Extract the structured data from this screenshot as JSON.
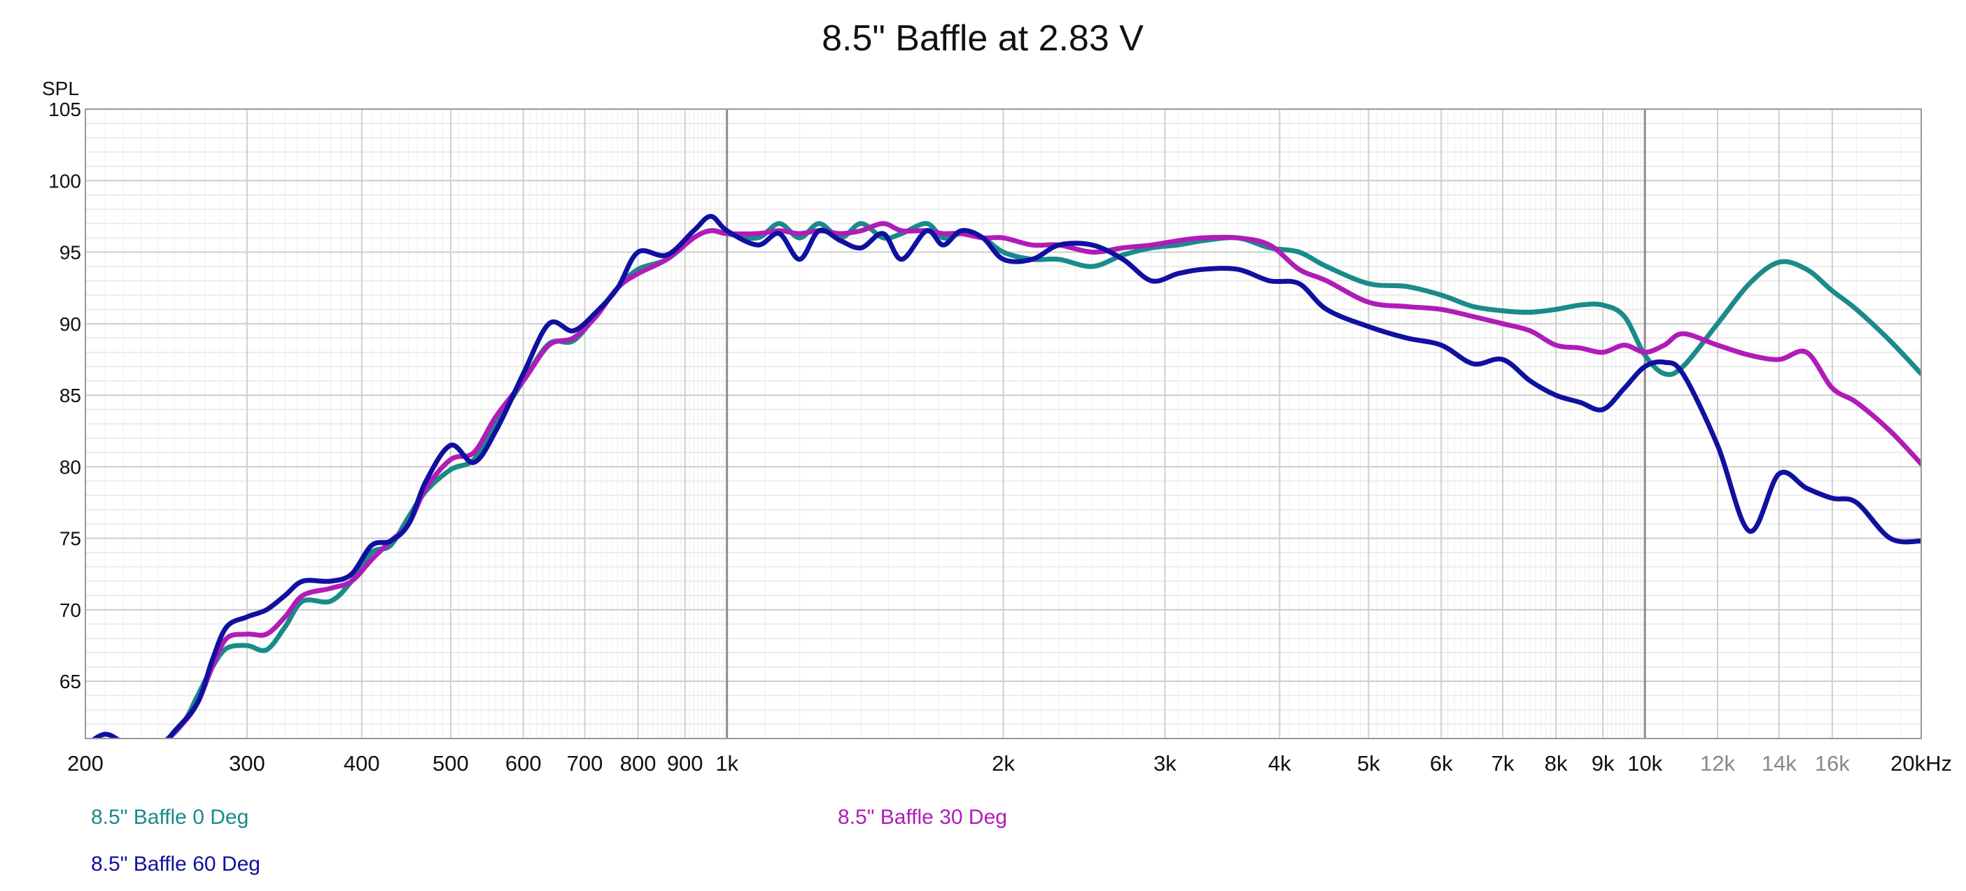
{
  "chart_data": {
    "type": "line",
    "title": "8.5\" Baffle at 2.83 V",
    "xlabel": "",
    "ylabel": "SPL",
    "x_scale": "log",
    "xlim": [
      200,
      20000
    ],
    "ylim": [
      61,
      105
    ],
    "grid": true,
    "legend_position": "bottom-left",
    "y_ticks": [
      65,
      70,
      75,
      80,
      85,
      90,
      95,
      100,
      105
    ],
    "x_ticks": [
      {
        "value": 200,
        "label": "200",
        "muted": false
      },
      {
        "value": 300,
        "label": "300",
        "muted": false
      },
      {
        "value": 400,
        "label": "400",
        "muted": false
      },
      {
        "value": 500,
        "label": "500",
        "muted": false
      },
      {
        "value": 600,
        "label": "600",
        "muted": false
      },
      {
        "value": 700,
        "label": "700",
        "muted": false
      },
      {
        "value": 800,
        "label": "800",
        "muted": false
      },
      {
        "value": 900,
        "label": "900",
        "muted": false
      },
      {
        "value": 1000,
        "label": "1k",
        "muted": false
      },
      {
        "value": 2000,
        "label": "2k",
        "muted": false
      },
      {
        "value": 3000,
        "label": "3k",
        "muted": false
      },
      {
        "value": 4000,
        "label": "4k",
        "muted": false
      },
      {
        "value": 5000,
        "label": "5k",
        "muted": false
      },
      {
        "value": 6000,
        "label": "6k",
        "muted": false
      },
      {
        "value": 7000,
        "label": "7k",
        "muted": false
      },
      {
        "value": 8000,
        "label": "8k",
        "muted": false
      },
      {
        "value": 9000,
        "label": "9k",
        "muted": false
      },
      {
        "value": 10000,
        "label": "10k",
        "muted": false
      },
      {
        "value": 12000,
        "label": "12k",
        "muted": true
      },
      {
        "value": 14000,
        "label": "14k",
        "muted": true
      },
      {
        "value": 16000,
        "label": "16k",
        "muted": true
      },
      {
        "value": 20000,
        "label": "20kHz",
        "muted": false
      }
    ],
    "series": [
      {
        "name": "8.5\" Baffle 0 Deg",
        "color": "#1a8a8a",
        "points": [
          [
            200,
            60
          ],
          [
            220,
            59.5
          ],
          [
            240,
            60.5
          ],
          [
            255,
            62
          ],
          [
            265,
            64
          ],
          [
            275,
            66
          ],
          [
            285,
            67.3
          ],
          [
            300,
            67.5
          ],
          [
            315,
            67.2
          ],
          [
            330,
            68.8
          ],
          [
            345,
            70.6
          ],
          [
            370,
            70.6
          ],
          [
            390,
            72
          ],
          [
            410,
            74
          ],
          [
            430,
            74.5
          ],
          [
            450,
            76.5
          ],
          [
            470,
            78.3
          ],
          [
            500,
            79.8
          ],
          [
            530,
            80.5
          ],
          [
            560,
            83
          ],
          [
            600,
            86
          ],
          [
            640,
            88.6
          ],
          [
            680,
            88.8
          ],
          [
            720,
            90.6
          ],
          [
            760,
            92.5
          ],
          [
            800,
            93.8
          ],
          [
            860,
            94.5
          ],
          [
            920,
            96
          ],
          [
            960,
            96.5
          ],
          [
            1000,
            96.3
          ],
          [
            1080,
            96
          ],
          [
            1140,
            97
          ],
          [
            1200,
            96
          ],
          [
            1260,
            97
          ],
          [
            1330,
            96
          ],
          [
            1400,
            97
          ],
          [
            1480,
            96
          ],
          [
            1550,
            96.3
          ],
          [
            1650,
            97
          ],
          [
            1720,
            96
          ],
          [
            1800,
            96.3
          ],
          [
            1900,
            96
          ],
          [
            2000,
            95
          ],
          [
            2150,
            94.5
          ],
          [
            2300,
            94.5
          ],
          [
            2500,
            94
          ],
          [
            2700,
            94.8
          ],
          [
            2900,
            95.3
          ],
          [
            3100,
            95.5
          ],
          [
            3300,
            95.8
          ],
          [
            3600,
            96
          ],
          [
            3900,
            95.3
          ],
          [
            4200,
            95
          ],
          [
            4500,
            94
          ],
          [
            5000,
            92.8
          ],
          [
            5500,
            92.6
          ],
          [
            6000,
            92
          ],
          [
            6500,
            91.2
          ],
          [
            7000,
            90.9
          ],
          [
            7500,
            90.8
          ],
          [
            8000,
            91
          ],
          [
            8500,
            91.3
          ],
          [
            9000,
            91.3
          ],
          [
            9500,
            90.5
          ],
          [
            10000,
            87.8
          ],
          [
            10500,
            86.5
          ],
          [
            11000,
            87
          ],
          [
            12000,
            90
          ],
          [
            13000,
            92.8
          ],
          [
            14000,
            94.3
          ],
          [
            15000,
            93.8
          ],
          [
            16000,
            92.3
          ],
          [
            17000,
            91
          ],
          [
            18500,
            88.8
          ],
          [
            20000,
            86.5
          ]
        ]
      },
      {
        "name": "8.5\" Baffle 30 Deg",
        "color": "#b01cb8",
        "points": [
          [
            200,
            60
          ],
          [
            220,
            59.5
          ],
          [
            240,
            60.5
          ],
          [
            255,
            62
          ],
          [
            265,
            63.5
          ],
          [
            275,
            66
          ],
          [
            285,
            68
          ],
          [
            300,
            68.3
          ],
          [
            315,
            68.3
          ],
          [
            330,
            69.5
          ],
          [
            345,
            71
          ],
          [
            370,
            71.5
          ],
          [
            390,
            72
          ],
          [
            410,
            73.5
          ],
          [
            430,
            74.8
          ],
          [
            450,
            76
          ],
          [
            470,
            78.5
          ],
          [
            500,
            80.5
          ],
          [
            530,
            81
          ],
          [
            560,
            83.5
          ],
          [
            600,
            86
          ],
          [
            640,
            88.5
          ],
          [
            680,
            89
          ],
          [
            720,
            90.5
          ],
          [
            760,
            92.5
          ],
          [
            800,
            93.5
          ],
          [
            860,
            94.5
          ],
          [
            920,
            96
          ],
          [
            960,
            96.5
          ],
          [
            1000,
            96.3
          ],
          [
            1080,
            96.3
          ],
          [
            1140,
            96.5
          ],
          [
            1200,
            96.3
          ],
          [
            1260,
            96.5
          ],
          [
            1330,
            96.3
          ],
          [
            1400,
            96.5
          ],
          [
            1480,
            97
          ],
          [
            1550,
            96.5
          ],
          [
            1650,
            96.5
          ],
          [
            1720,
            96.3
          ],
          [
            1800,
            96.3
          ],
          [
            1900,
            96
          ],
          [
            2000,
            96
          ],
          [
            2150,
            95.5
          ],
          [
            2300,
            95.5
          ],
          [
            2500,
            95
          ],
          [
            2700,
            95.3
          ],
          [
            2900,
            95.5
          ],
          [
            3100,
            95.8
          ],
          [
            3300,
            96
          ],
          [
            3600,
            96
          ],
          [
            3900,
            95.5
          ],
          [
            4200,
            93.8
          ],
          [
            4500,
            93
          ],
          [
            5000,
            91.5
          ],
          [
            5500,
            91.2
          ],
          [
            6000,
            91
          ],
          [
            6500,
            90.5
          ],
          [
            7000,
            90
          ],
          [
            7500,
            89.5
          ],
          [
            8000,
            88.5
          ],
          [
            8500,
            88.3
          ],
          [
            9000,
            88
          ],
          [
            9500,
            88.5
          ],
          [
            10000,
            88
          ],
          [
            10500,
            88.5
          ],
          [
            11000,
            89.3
          ],
          [
            12000,
            88.5
          ],
          [
            13000,
            87.8
          ],
          [
            14000,
            87.5
          ],
          [
            15000,
            88
          ],
          [
            16000,
            85.5
          ],
          [
            17000,
            84.5
          ],
          [
            18500,
            82.5
          ],
          [
            20000,
            80.2
          ]
        ]
      },
      {
        "name": "8.5\" Baffle 60 Deg",
        "color": "#1010a0",
        "points": [
          [
            200,
            60.5
          ],
          [
            210,
            61.3
          ],
          [
            220,
            60.7
          ],
          [
            235,
            59.7
          ],
          [
            250,
            61.5
          ],
          [
            265,
            63.5
          ],
          [
            275,
            66.5
          ],
          [
            285,
            68.8
          ],
          [
            300,
            69.5
          ],
          [
            315,
            70
          ],
          [
            330,
            71
          ],
          [
            345,
            72
          ],
          [
            370,
            72
          ],
          [
            390,
            72.5
          ],
          [
            410,
            74.5
          ],
          [
            430,
            74.8
          ],
          [
            450,
            76
          ],
          [
            470,
            79
          ],
          [
            500,
            81.5
          ],
          [
            530,
            80.3
          ],
          [
            560,
            82.5
          ],
          [
            600,
            86.5
          ],
          [
            640,
            90
          ],
          [
            680,
            89.5
          ],
          [
            720,
            90.8
          ],
          [
            760,
            92.5
          ],
          [
            800,
            95
          ],
          [
            860,
            94.8
          ],
          [
            920,
            96.5
          ],
          [
            960,
            97.5
          ],
          [
            1000,
            96.5
          ],
          [
            1080,
            95.5
          ],
          [
            1140,
            96.3
          ],
          [
            1200,
            94.5
          ],
          [
            1260,
            96.5
          ],
          [
            1330,
            95.8
          ],
          [
            1400,
            95.3
          ],
          [
            1480,
            96.3
          ],
          [
            1550,
            94.5
          ],
          [
            1650,
            96.5
          ],
          [
            1720,
            95.5
          ],
          [
            1800,
            96.5
          ],
          [
            1900,
            96
          ],
          [
            2000,
            94.5
          ],
          [
            2150,
            94.5
          ],
          [
            2300,
            95.5
          ],
          [
            2500,
            95.5
          ],
          [
            2700,
            94.5
          ],
          [
            2900,
            93
          ],
          [
            3100,
            93.5
          ],
          [
            3300,
            93.8
          ],
          [
            3600,
            93.8
          ],
          [
            3900,
            93
          ],
          [
            4200,
            92.8
          ],
          [
            4500,
            91
          ],
          [
            5000,
            89.8
          ],
          [
            5500,
            89
          ],
          [
            6000,
            88.5
          ],
          [
            6500,
            87.2
          ],
          [
            7000,
            87.5
          ],
          [
            7500,
            86
          ],
          [
            8000,
            85
          ],
          [
            8500,
            84.5
          ],
          [
            9000,
            84
          ],
          [
            9500,
            85.5
          ],
          [
            10000,
            87
          ],
          [
            10500,
            87.3
          ],
          [
            11000,
            86.5
          ],
          [
            12000,
            81.5
          ],
          [
            13000,
            75.5
          ],
          [
            14000,
            79.5
          ],
          [
            15000,
            78.5
          ],
          [
            16000,
            77.8
          ],
          [
            17000,
            77.5
          ],
          [
            18500,
            75
          ],
          [
            20000,
            74.8
          ]
        ]
      }
    ]
  }
}
